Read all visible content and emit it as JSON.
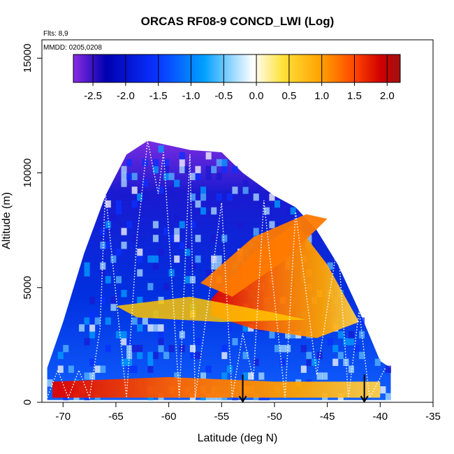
{
  "chart_data": {
    "type": "heatmap",
    "title": "ORCAS RF08-9 CONCD_LWI (Log)",
    "subtitle_left_top": "Flts: 8,9",
    "subtitle_left_bottom": "MMDD: 0205,0208",
    "xlabel": "Latitude (deg N)",
    "ylabel": "Altitude (m)",
    "xlim": [
      -72,
      -35
    ],
    "ylim": [
      0,
      15800
    ],
    "x_ticks": [
      -70,
      -65,
      -60,
      -55,
      -50,
      -45,
      -40,
      -35
    ],
    "x_tick_labels": [
      "-70",
      "-65",
      "-60",
      "-55",
      "-50",
      "-45",
      "-40",
      "-35"
    ],
    "y_ticks": [
      0,
      5000,
      10000,
      15000
    ],
    "y_tick_labels": [
      "0",
      "5000",
      "10000",
      "15000"
    ],
    "colorbar": {
      "range": [
        -2.8,
        2.2
      ],
      "ticks": [
        -2.5,
        -2.0,
        -1.5,
        -1.0,
        -0.5,
        0.0,
        0.5,
        1.0,
        1.5,
        2.0
      ],
      "tick_labels": [
        "-2.5",
        "-2.0",
        "-1.5",
        "-1.0",
        "-0.5",
        "0.0",
        "0.5",
        "1.0",
        "1.5",
        "2.0"
      ],
      "colors": [
        "#8a2be2",
        "#0000b0",
        "#0a30ff",
        "#00a0ff",
        "#aee0ff",
        "#ffffff",
        "#ffe23a",
        "#ffa000",
        "#ff4500",
        "#d00000",
        "#a01010"
      ]
    },
    "cross_section": {
      "envelope_top": [
        [
          -71.5,
          1500
        ],
        [
          -70,
          3500
        ],
        [
          -68,
          6500
        ],
        [
          -66,
          9000
        ],
        [
          -64,
          10800
        ],
        [
          -62,
          11400
        ],
        [
          -60,
          11200
        ],
        [
          -58,
          11000
        ],
        [
          -55,
          10900
        ],
        [
          -53,
          10000
        ],
        [
          -50,
          9000
        ],
        [
          -48,
          8500
        ],
        [
          -46,
          7500
        ],
        [
          -44,
          6000
        ],
        [
          -42,
          4000
        ],
        [
          -40,
          1800
        ],
        [
          -39,
          1500
        ]
      ],
      "bottom": 100,
      "layers": [
        {
          "kind": "warm-core",
          "value": 1.3,
          "points": [
            [
              -56,
              4500
            ],
            [
              -52,
              6500
            ],
            [
              -48,
              7800
            ],
            [
              -45,
              6000
            ],
            [
              -42,
              3500
            ],
            [
              -46,
              2800
            ],
            [
              -52,
              3200
            ],
            [
              -56,
              3800
            ]
          ]
        },
        {
          "kind": "warm-band",
          "value": 0.6,
          "points": [
            [
              -57,
              5200
            ],
            [
              -52,
              7200
            ],
            [
              -47,
              8200
            ],
            [
              -45,
              8000
            ],
            [
              -49,
              6200
            ],
            [
              -54,
              4600
            ]
          ]
        },
        {
          "kind": "surface-warm",
          "value": 1.8,
          "points": [
            [
              -71,
              200
            ],
            [
              -60,
              200
            ],
            [
              -50,
              200
            ],
            [
              -40,
              200
            ],
            [
              -40,
              900
            ],
            [
              -50,
              900
            ],
            [
              -60,
              1100
            ],
            [
              -71,
              900
            ]
          ]
        },
        {
          "kind": "mid-level",
          "value": 0.4,
          "points": [
            [
              -65,
              4200
            ],
            [
              -58,
              4600
            ],
            [
              -50,
              3900
            ],
            [
              -47,
              3600
            ],
            [
              -55,
              3500
            ],
            [
              -63,
              3700
            ]
          ]
        }
      ]
    },
    "flight_track_markers": [
      {
        "lat": -53,
        "alt": 600
      },
      {
        "lat": -41.5,
        "alt": 600
      }
    ]
  }
}
